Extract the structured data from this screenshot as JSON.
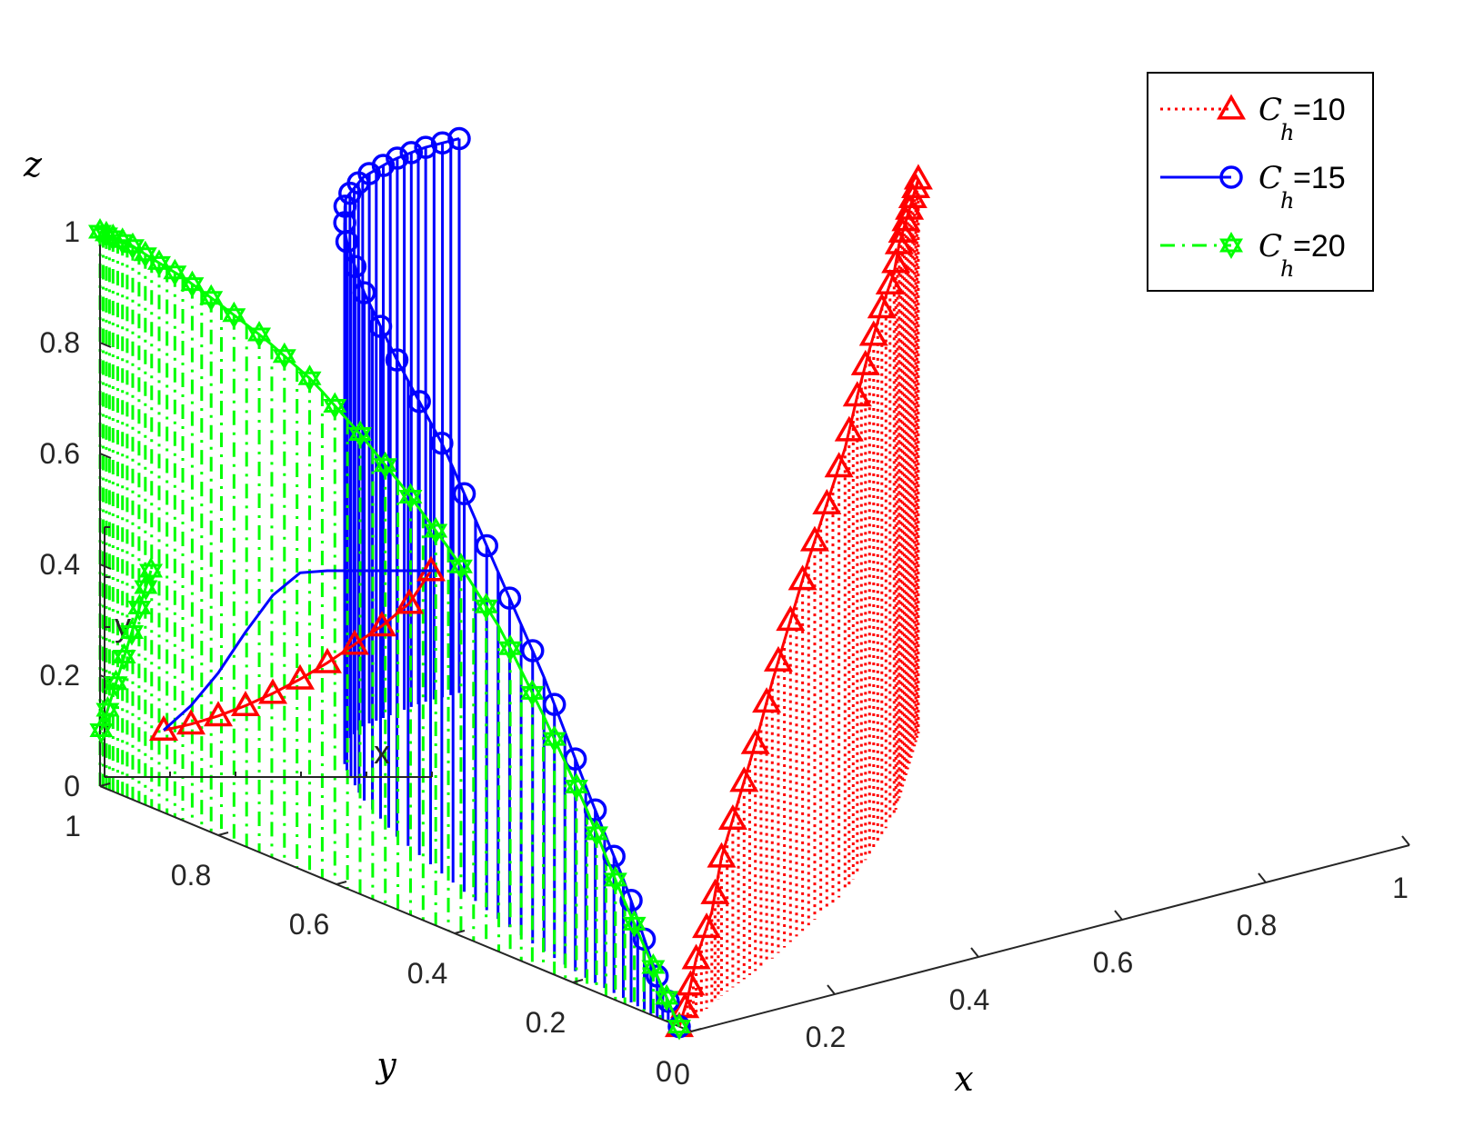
{
  "chart_data": {
    "type": "line",
    "projection": "3d",
    "xlabel": "x",
    "ylabel": "y",
    "zlabel": "z",
    "xlim": [
      0,
      1
    ],
    "ylim": [
      0,
      1
    ],
    "zlim": [
      0,
      1
    ],
    "x_ticks": [
      "0",
      "0.2",
      "0.4",
      "0.6",
      "0.8",
      "1"
    ],
    "y_ticks": [
      "0",
      "0.2",
      "0.4",
      "0.6",
      "0.8",
      "1"
    ],
    "z_ticks": [
      "0",
      "0.2",
      "0.4",
      "0.6",
      "0.8",
      "1"
    ],
    "grid": false,
    "legend_position": "top-right",
    "series": [
      {
        "name": "C_h=10",
        "legend_symbol": "C",
        "legend_subscript": "h",
        "legend_value": "=10",
        "color": "#ff0000",
        "line_style": "dotted",
        "marker": "triangle",
        "x": [
          0.0,
          0.02,
          0.04,
          0.07,
          0.1,
          0.14,
          0.18,
          0.22,
          0.27,
          0.32,
          0.37,
          0.42,
          0.47,
          0.52,
          0.57,
          0.62,
          0.66,
          0.7,
          0.74,
          0.78,
          0.81
        ],
        "y": [
          0.02,
          0.03,
          0.04,
          0.05,
          0.07,
          0.09,
          0.11,
          0.13,
          0.16,
          0.19,
          0.22,
          0.25,
          0.29,
          0.33,
          0.37,
          0.41,
          0.45,
          0.49,
          0.53,
          0.57,
          0.6
        ],
        "z": [
          0.0,
          0.04,
          0.1,
          0.17,
          0.25,
          0.33,
          0.41,
          0.5,
          0.58,
          0.66,
          0.73,
          0.8,
          0.86,
          0.91,
          0.95,
          0.98,
          1.0,
          1.0,
          1.0,
          1.0,
          1.0
        ]
      },
      {
        "name": "C_h=15",
        "legend_symbol": "C",
        "legend_subscript": "h",
        "legend_value": "=15",
        "color": "#0000ff",
        "line_style": "solid",
        "marker": "circle",
        "x": [
          0.0,
          0.0,
          0.01,
          0.02,
          0.04,
          0.07,
          0.11,
          0.15,
          0.2,
          0.25,
          0.3,
          0.35,
          0.4,
          0.45,
          0.5
        ],
        "y": [
          0.02,
          0.06,
          0.12,
          0.2,
          0.3,
          0.42,
          0.55,
          0.68,
          0.8,
          0.89,
          0.95,
          0.98,
          0.99,
          1.0,
          1.0
        ],
        "z": [
          0.0,
          0.08,
          0.2,
          0.34,
          0.5,
          0.64,
          0.77,
          0.86,
          0.92,
          0.96,
          0.98,
          0.99,
          1.0,
          1.0,
          1.0
        ]
      },
      {
        "name": "C_h=20",
        "legend_symbol": "C",
        "legend_subscript": "h",
        "legend_value": "=20",
        "color": "#00ff00",
        "line_style": "dash-dot",
        "marker": "hexagram",
        "x": [
          0.0,
          0.0,
          0.0,
          0.0,
          0.0,
          0.0,
          0.0,
          0.0,
          0.0,
          0.0,
          0.0,
          0.0,
          0.0,
          0.0,
          0.0,
          0.0,
          0.0
        ],
        "y": [
          0.02,
          0.06,
          0.12,
          0.18,
          0.25,
          0.32,
          0.4,
          0.48,
          0.56,
          0.64,
          0.72,
          0.8,
          0.86,
          0.91,
          0.95,
          0.98,
          1.0
        ],
        "z": [
          0.0,
          0.08,
          0.2,
          0.33,
          0.46,
          0.58,
          0.68,
          0.76,
          0.83,
          0.89,
          0.93,
          0.96,
          0.98,
          0.99,
          1.0,
          1.0,
          1.0
        ]
      }
    ],
    "inset": {
      "xlabel": "x",
      "ylabel": "y",
      "series": [
        {
          "name": "C_h=10",
          "x": [
            0.0,
            0.1,
            0.2,
            0.3,
            0.4,
            0.5,
            0.6,
            0.7,
            0.8,
            0.9,
            0.98
          ],
          "y": [
            0.02,
            0.05,
            0.09,
            0.14,
            0.2,
            0.27,
            0.35,
            0.44,
            0.53,
            0.64,
            0.8
          ]
        },
        {
          "name": "C_h=15",
          "x": [
            0.0,
            0.1,
            0.2,
            0.3,
            0.4,
            0.5,
            0.6,
            0.7,
            0.8,
            0.9,
            1.0
          ],
          "y": [
            0.02,
            0.14,
            0.3,
            0.5,
            0.68,
            0.79,
            0.8,
            0.8,
            0.8,
            0.8,
            0.8
          ]
        },
        {
          "name": "C_h=20",
          "x": [
            0.0,
            0.0,
            0.0,
            0.0,
            0.0,
            0.0,
            0.0,
            0.0
          ],
          "y": [
            0.02,
            0.12,
            0.25,
            0.38,
            0.5,
            0.62,
            0.72,
            0.8
          ]
        }
      ]
    }
  }
}
